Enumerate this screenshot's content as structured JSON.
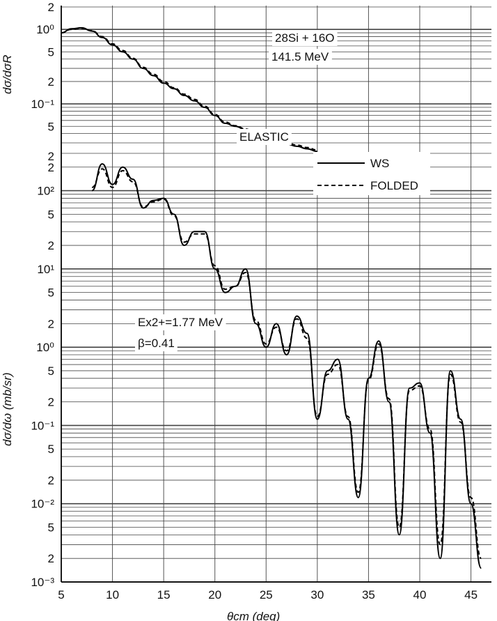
{
  "chart_data": {
    "type": "line",
    "title": "",
    "x_axis": {
      "label": "θcm (deg)",
      "range": [
        5,
        47
      ],
      "ticks": [
        "5",
        "10",
        "15",
        "20",
        "25",
        "30",
        "35",
        "40",
        "45"
      ]
    },
    "top_panel": {
      "ylabel": "dσ/dσR",
      "ylim_log": [
        0.03,
        2
      ],
      "tick_labels": [
        "2",
        "10⁰",
        "5",
        "2",
        "10⁻¹",
        "5",
        "2"
      ],
      "label_reaction": "28Si + 16O",
      "label_energy": "141.5 MeV",
      "label_channel": "ELASTIC"
    },
    "bottom_panel": {
      "ylabel": "dσ/dω (mb/sr)",
      "ylim_log": [
        0.001,
        300
      ],
      "tick_labels": [
        "2",
        "10²",
        "5",
        "2",
        "10¹",
        "5",
        "2",
        "10⁰",
        "5",
        "2",
        "10⁻¹",
        "5",
        "2",
        "10⁻²",
        "5",
        "2",
        "10⁻³"
      ],
      "label_excitation": "Ex2+=1.77 MeV",
      "label_deformation": "β=0.41"
    },
    "legend": [
      {
        "name": "WS",
        "style": "solid"
      },
      {
        "name": "FOLDED",
        "style": "dashed"
      }
    ],
    "series": [
      {
        "name": "WS",
        "panel": "elastic",
        "x": [
          5,
          6,
          7,
          8,
          9,
          10,
          11,
          12,
          13,
          14,
          15,
          16,
          17,
          18,
          19,
          20,
          21,
          22,
          23,
          24,
          25,
          26,
          27,
          28,
          29,
          30
        ],
        "y": [
          0.9,
          1.02,
          1.05,
          0.95,
          0.78,
          0.62,
          0.5,
          0.4,
          0.3,
          0.24,
          0.19,
          0.16,
          0.13,
          0.11,
          0.09,
          0.07,
          0.055,
          0.05,
          0.045,
          0.04,
          0.036,
          0.032,
          0.029,
          0.027,
          0.025,
          0.023
        ]
      },
      {
        "name": "FOLDED",
        "panel": "elastic",
        "x": [
          5,
          6,
          7,
          8,
          9,
          10,
          11,
          12,
          13,
          14,
          15,
          16,
          17,
          18,
          19,
          20,
          21,
          22,
          23,
          24,
          25,
          26,
          27,
          28,
          29,
          30
        ],
        "y": [
          0.9,
          1.0,
          1.04,
          0.96,
          0.8,
          0.64,
          0.52,
          0.41,
          0.31,
          0.25,
          0.2,
          0.165,
          0.135,
          0.115,
          0.093,
          0.072,
          0.057,
          0.051,
          0.046,
          0.041,
          0.037,
          0.033,
          0.03,
          0.028,
          0.026,
          0.024
        ]
      },
      {
        "name": "WS",
        "panel": "inelastic",
        "x": [
          8,
          9,
          10,
          11,
          12,
          13,
          14,
          15,
          16,
          17,
          18,
          19,
          20,
          21,
          22,
          23,
          24,
          25,
          26,
          27,
          28,
          29,
          30,
          31,
          32,
          33,
          34,
          35,
          36,
          37,
          38,
          39,
          40,
          41,
          42,
          43,
          44,
          45,
          46
        ],
        "y": [
          100,
          220,
          120,
          200,
          140,
          60,
          75,
          80,
          50,
          20,
          30,
          30,
          10,
          5,
          6,
          10,
          2,
          1,
          2,
          0.8,
          2.5,
          1.5,
          0.12,
          0.5,
          0.7,
          0.12,
          0.012,
          0.4,
          1.2,
          0.2,
          0.004,
          0.3,
          0.35,
          0.08,
          0.002,
          0.5,
          0.12,
          0.01,
          0.0015
        ]
      },
      {
        "name": "FOLDED",
        "panel": "inelastic",
        "x": [
          8,
          9,
          10,
          11,
          12,
          13,
          14,
          15,
          16,
          17,
          18,
          19,
          20,
          21,
          22,
          23,
          24,
          25,
          26,
          27,
          28,
          29,
          30,
          31,
          32,
          33,
          34,
          35,
          36,
          37,
          38,
          39,
          40,
          41,
          42,
          43,
          44,
          45,
          46
        ],
        "y": [
          110,
          190,
          110,
          180,
          130,
          62,
          72,
          78,
          48,
          22,
          28,
          28,
          11,
          5.5,
          6,
          9,
          2.2,
          1.1,
          1.8,
          0.9,
          2.3,
          1.3,
          0.13,
          0.45,
          0.6,
          0.13,
          0.014,
          0.38,
          1.1,
          0.22,
          0.005,
          0.28,
          0.32,
          0.09,
          0.003,
          0.45,
          0.11,
          0.012,
          0.002
        ]
      }
    ]
  }
}
